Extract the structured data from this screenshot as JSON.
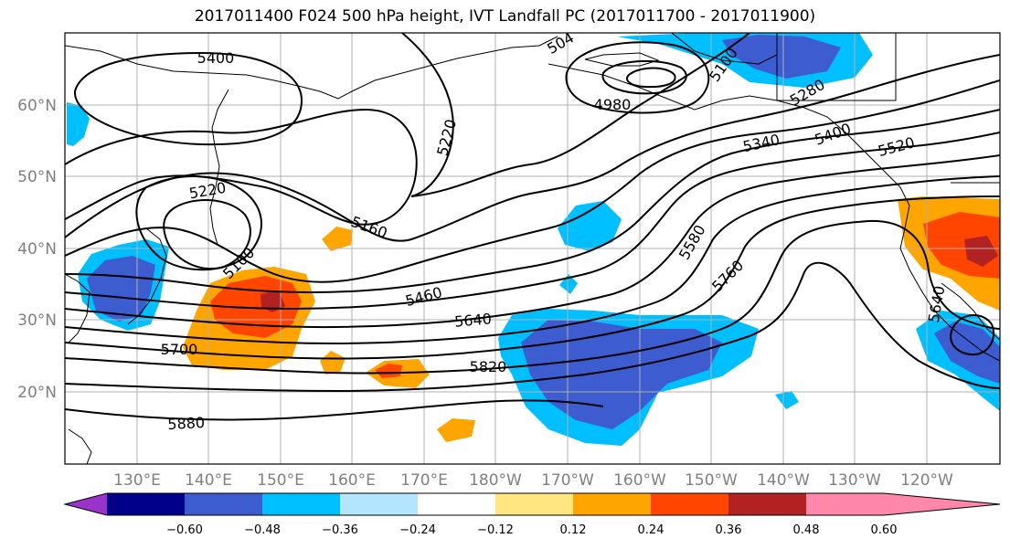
{
  "title": "2017011400 F024 500 hPa height, IVT Landfall PC (2017011700 - 2017011900)",
  "lat_labels": [
    "60°N",
    "50°N",
    "40°N",
    "30°N",
    "20°N"
  ],
  "lon_labels": [
    "130°E",
    "140°E",
    "150°E",
    "160°E",
    "170°E",
    "180°W",
    "170°W",
    "160°W",
    "150°W",
    "140°W",
    "130°W",
    "120°W"
  ],
  "colorbar": {
    "colors": [
      "#9933cc",
      "#00008b",
      "#3c5cd0",
      "#00bfff",
      "#b3e5ff",
      "#ffffff",
      "#ffe680",
      "#ffa500",
      "#ff4500",
      "#b22222",
      "#ff88aa"
    ],
    "tick_labels": [
      "−0.60",
      "−0.48",
      "−0.36",
      "−0.24",
      "−0.12",
      "0.12",
      "0.24",
      "0.36",
      "0.48",
      "0.60"
    ]
  },
  "contour_labels": [
    "5400",
    "504",
    "5100",
    "4980",
    "5220",
    "5220",
    "5160",
    "5100",
    "5460",
    "5640",
    "5700",
    "5820",
    "5880",
    "5580",
    "5760",
    "5340",
    "5280",
    "5400",
    "5520",
    "5640"
  ]
}
